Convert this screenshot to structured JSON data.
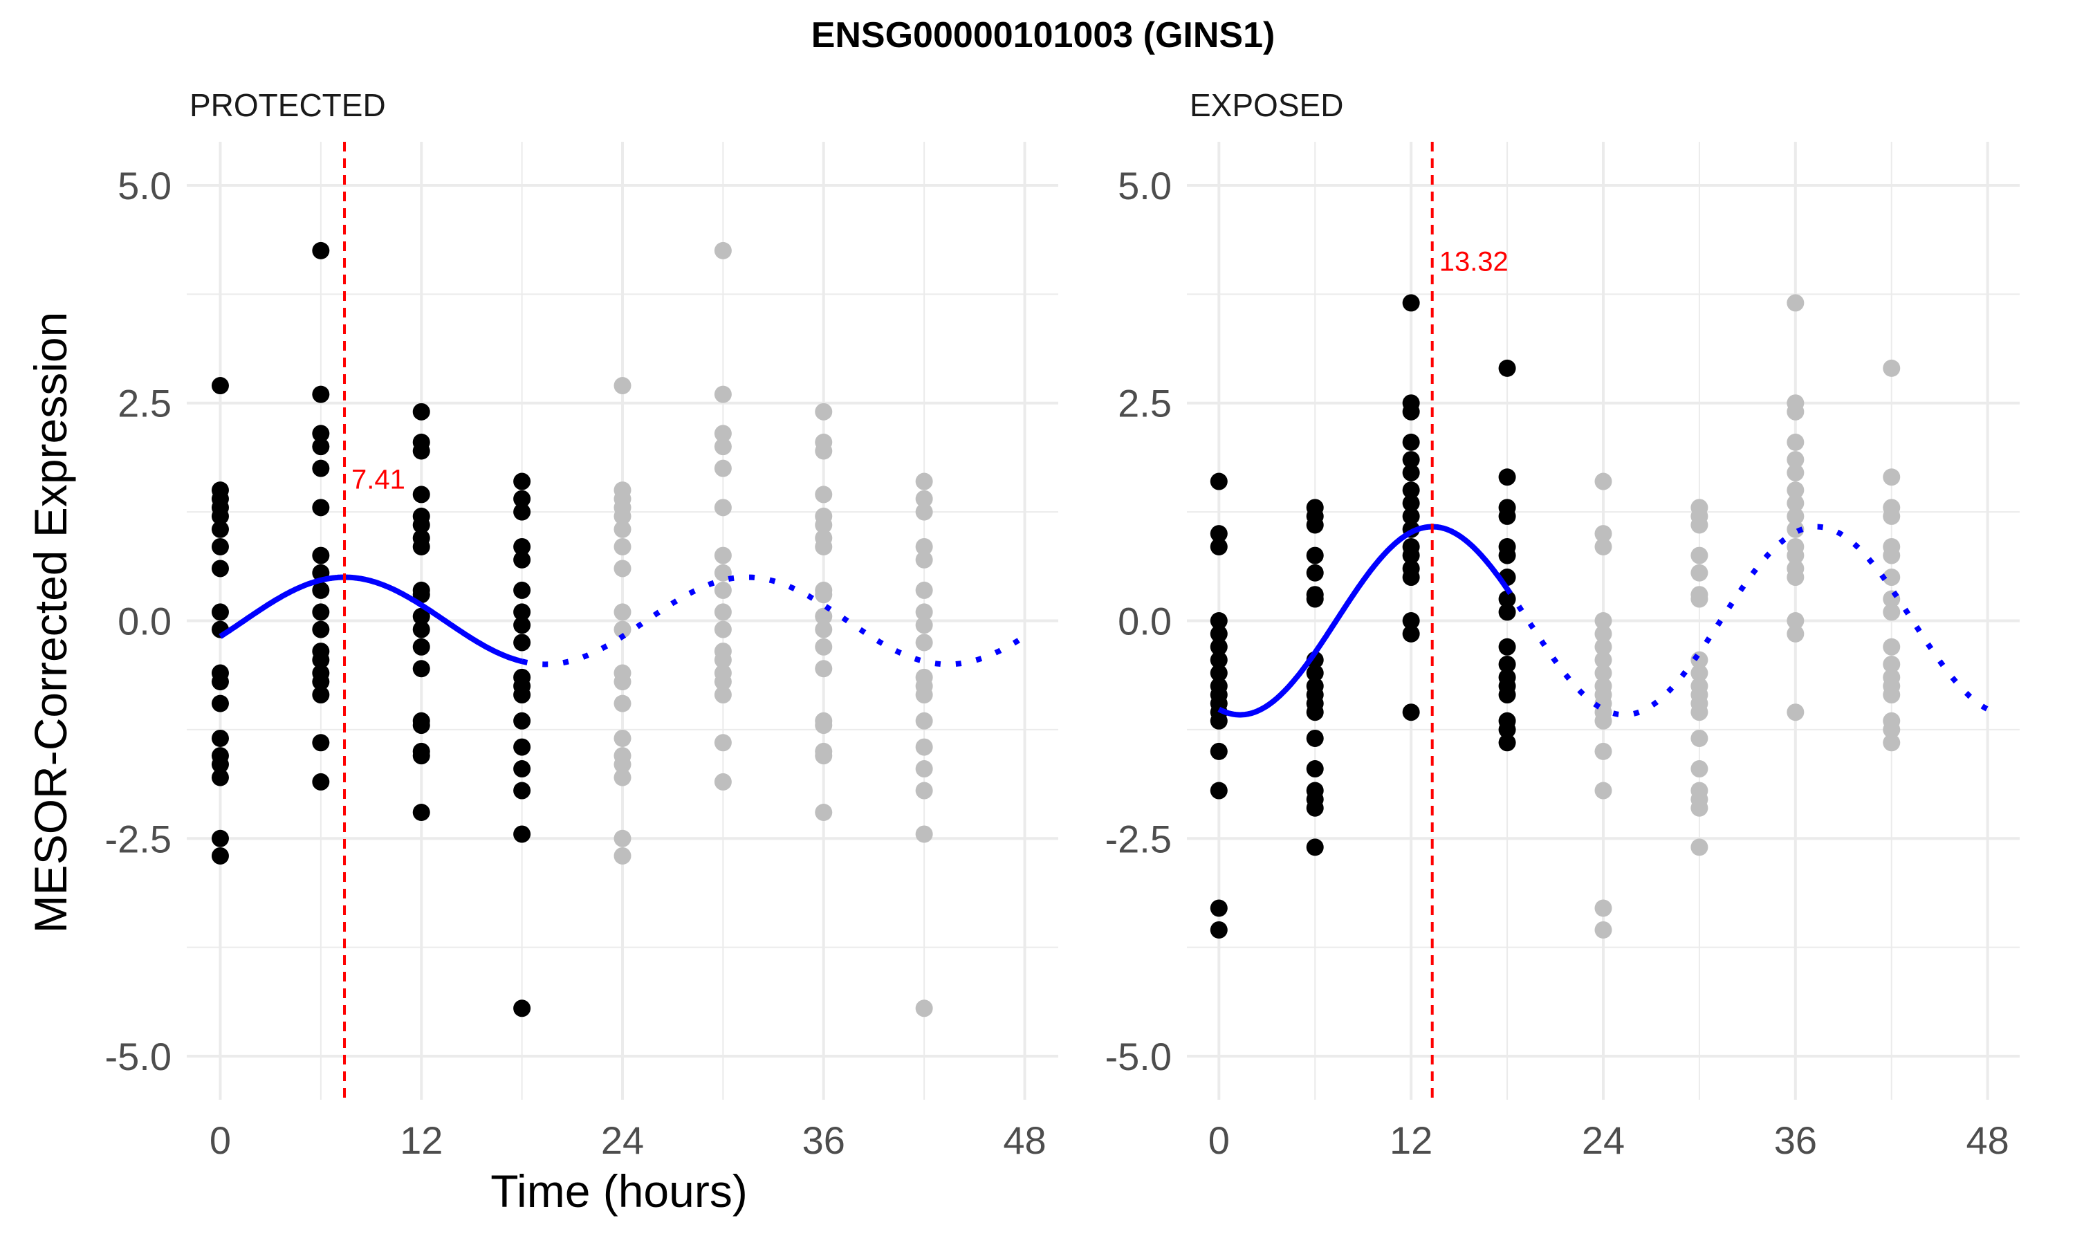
{
  "figure": {
    "title": "ENSG00000101003 (GINS1)",
    "xlabel": "Time (hours)",
    "ylabel": "MESOR-Corrected Expression"
  },
  "colors": {
    "observed_point": "#000000",
    "replicated_point": "#bebebe",
    "fit_line": "#0000ff",
    "peak_line": "#ff0000",
    "grid": "#ebebeb",
    "tick_text": "#4d4d4d"
  },
  "chart_data": [
    {
      "type": "scatter",
      "panel": "PROTECTED",
      "xlim": [
        -2,
        50
      ],
      "ylim": [
        -5.5,
        5.5
      ],
      "x_ticks": [
        0,
        12,
        24,
        36,
        48
      ],
      "x_tick_labels": [
        "0",
        "12",
        "24",
        "36",
        "48"
      ],
      "y_ticks": [
        5.0,
        2.5,
        0.0,
        -2.5,
        -5.0
      ],
      "y_tick_labels": [
        "5.0",
        "2.5",
        "0.0",
        "-2.5",
        "-5.0"
      ],
      "grid": true,
      "peak": {
        "x": 7.41,
        "label": "7.41"
      },
      "fit": {
        "mesor": 0.0,
        "amplitude": 0.5,
        "period": 24,
        "acrophase": 7.41,
        "solid_range": [
          0,
          18
        ],
        "dotted_range": [
          18,
          48
        ]
      },
      "points": [
        {
          "x": 0,
          "y": [
            2.7,
            1.5,
            1.4,
            1.3,
            1.2,
            1.05,
            0.85,
            0.6,
            0.1,
            -0.1,
            -0.6,
            -0.7,
            -0.95,
            -1.35,
            -1.55,
            -1.65,
            -1.8,
            -2.5,
            -2.7
          ]
        },
        {
          "x": 6,
          "y": [
            4.25,
            2.6,
            2.15,
            2.0,
            1.75,
            1.3,
            0.75,
            0.55,
            0.35,
            0.1,
            -0.1,
            -0.35,
            -0.45,
            -0.6,
            -0.7,
            -0.85,
            -1.4,
            -1.85
          ]
        },
        {
          "x": 12,
          "y": [
            2.4,
            2.05,
            1.95,
            1.45,
            1.2,
            1.1,
            0.95,
            0.85,
            0.35,
            0.3,
            0.05,
            -0.1,
            -0.3,
            -0.55,
            -1.15,
            -1.2,
            -1.5,
            -1.55,
            -2.2
          ]
        },
        {
          "x": 18,
          "y": [
            1.6,
            1.4,
            1.25,
            0.85,
            0.7,
            0.35,
            0.1,
            -0.05,
            -0.25,
            -0.65,
            -0.75,
            -0.85,
            -1.15,
            -1.45,
            -1.7,
            -1.95,
            -2.45,
            -4.45
          ]
        }
      ],
      "replicated_points": [
        {
          "x": 24,
          "y": [
            2.7,
            1.5,
            1.4,
            1.3,
            1.2,
            1.05,
            0.85,
            0.6,
            0.1,
            -0.1,
            -0.6,
            -0.7,
            -0.95,
            -1.35,
            -1.55,
            -1.65,
            -1.8,
            -2.5,
            -2.7
          ]
        },
        {
          "x": 30,
          "y": [
            4.25,
            2.6,
            2.15,
            2.0,
            1.75,
            1.3,
            0.75,
            0.55,
            0.35,
            0.1,
            -0.1,
            -0.35,
            -0.45,
            -0.6,
            -0.7,
            -0.85,
            -1.4,
            -1.85
          ]
        },
        {
          "x": 36,
          "y": [
            2.4,
            2.05,
            1.95,
            1.45,
            1.2,
            1.1,
            0.95,
            0.85,
            0.35,
            0.3,
            0.05,
            -0.1,
            -0.3,
            -0.55,
            -1.15,
            -1.2,
            -1.5,
            -1.55,
            -2.2
          ]
        },
        {
          "x": 42,
          "y": [
            1.6,
            1.4,
            1.25,
            0.85,
            0.7,
            0.35,
            0.1,
            -0.05,
            -0.25,
            -0.65,
            -0.75,
            -0.85,
            -1.15,
            -1.45,
            -1.7,
            -1.95,
            -2.45,
            -4.45
          ]
        }
      ]
    },
    {
      "type": "scatter",
      "panel": "EXPOSED",
      "xlim": [
        -2,
        50
      ],
      "ylim": [
        -5.5,
        5.5
      ],
      "x_ticks": [
        0,
        12,
        24,
        36,
        48
      ],
      "x_tick_labels": [
        "0",
        "12",
        "24",
        "36",
        "48"
      ],
      "y_ticks": [
        5.0,
        2.5,
        0.0,
        -2.5,
        -5.0
      ],
      "y_tick_labels": [
        "5.0",
        "2.5",
        "0.0",
        "-2.5",
        "-5.0"
      ],
      "grid": true,
      "peak": {
        "x": 13.32,
        "label": "13.32"
      },
      "fit": {
        "mesor": 0.0,
        "amplitude": 1.08,
        "period": 24,
        "acrophase": 13.32,
        "solid_range": [
          0,
          18
        ],
        "dotted_range": [
          18,
          48
        ]
      },
      "points": [
        {
          "x": 0,
          "y": [
            1.6,
            1.0,
            0.85,
            0.0,
            -0.15,
            -0.3,
            -0.45,
            -0.6,
            -0.75,
            -0.85,
            -0.95,
            -1.05,
            -1.15,
            -1.5,
            -1.95,
            -3.3,
            -3.55
          ]
        },
        {
          "x": 6,
          "y": [
            1.3,
            1.2,
            1.1,
            0.75,
            0.55,
            0.3,
            0.25,
            -0.45,
            -0.6,
            -0.75,
            -0.85,
            -0.95,
            -1.05,
            -1.35,
            -1.7,
            -1.95,
            -2.05,
            -2.15,
            -2.6
          ]
        },
        {
          "x": 12,
          "y": [
            3.65,
            2.5,
            2.4,
            2.05,
            1.85,
            1.7,
            1.5,
            1.35,
            1.2,
            1.05,
            0.85,
            0.75,
            0.6,
            0.5,
            0.0,
            -0.15,
            -1.05
          ]
        },
        {
          "x": 18,
          "y": [
            2.9,
            1.65,
            1.3,
            1.2,
            0.85,
            0.75,
            0.5,
            0.25,
            0.1,
            -0.3,
            -0.5,
            -0.65,
            -0.75,
            -0.85,
            -1.15,
            -1.25,
            -1.4
          ]
        }
      ],
      "replicated_points": [
        {
          "x": 24,
          "y": [
            1.6,
            1.0,
            0.85,
            0.0,
            -0.15,
            -0.3,
            -0.45,
            -0.6,
            -0.75,
            -0.85,
            -0.95,
            -1.05,
            -1.15,
            -1.5,
            -1.95,
            -3.3,
            -3.55
          ]
        },
        {
          "x": 30,
          "y": [
            1.3,
            1.2,
            1.1,
            0.75,
            0.55,
            0.3,
            0.25,
            -0.45,
            -0.6,
            -0.75,
            -0.85,
            -0.95,
            -1.05,
            -1.35,
            -1.7,
            -1.95,
            -2.05,
            -2.15,
            -2.6
          ]
        },
        {
          "x": 36,
          "y": [
            3.65,
            2.5,
            2.4,
            2.05,
            1.85,
            1.7,
            1.5,
            1.35,
            1.2,
            1.05,
            0.85,
            0.75,
            0.6,
            0.5,
            0.0,
            -0.15,
            -1.05
          ]
        },
        {
          "x": 42,
          "y": [
            2.9,
            1.65,
            1.3,
            1.2,
            0.85,
            0.75,
            0.5,
            0.25,
            0.1,
            -0.3,
            -0.5,
            -0.65,
            -0.75,
            -0.85,
            -1.15,
            -1.25,
            -1.4
          ]
        }
      ]
    }
  ]
}
